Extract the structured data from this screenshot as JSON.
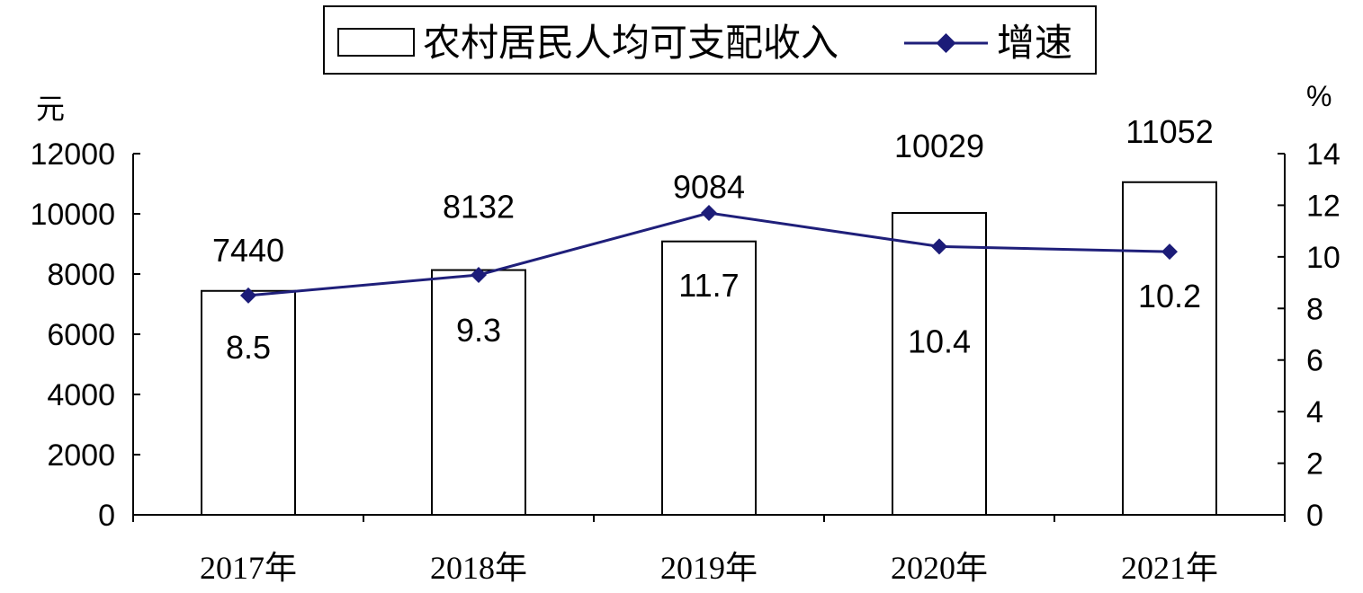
{
  "chart_data": {
    "type": "bar",
    "categories": [
      "2017年",
      "2018年",
      "2019年",
      "2020年",
      "2021年"
    ],
    "series": [
      {
        "name": "农村居民人均可支配收入",
        "type": "bar",
        "axis": "left",
        "values": [
          7440,
          8132,
          9084,
          10029,
          11052
        ]
      },
      {
        "name": "增速",
        "type": "line",
        "axis": "right",
        "values": [
          8.5,
          9.3,
          11.7,
          10.4,
          10.2
        ]
      }
    ],
    "y_left": {
      "unit": "元",
      "ylim": [
        0,
        12000
      ],
      "ticks": [
        "0",
        "2000",
        "4000",
        "6000",
        "8000",
        "10000",
        "12000"
      ]
    },
    "y_right": {
      "unit": "%",
      "ylim": [
        0,
        14
      ],
      "ticks": [
        "0",
        "2",
        "4",
        "6",
        "8",
        "10",
        "12",
        "14"
      ]
    },
    "legend": {
      "position": "top-center"
    },
    "grid": false,
    "colors": {
      "bar_fill": "#ffffff",
      "bar_stroke": "#000000",
      "line": "#1f1f7a",
      "marker": "#1c1c78",
      "text": "#000000"
    }
  }
}
